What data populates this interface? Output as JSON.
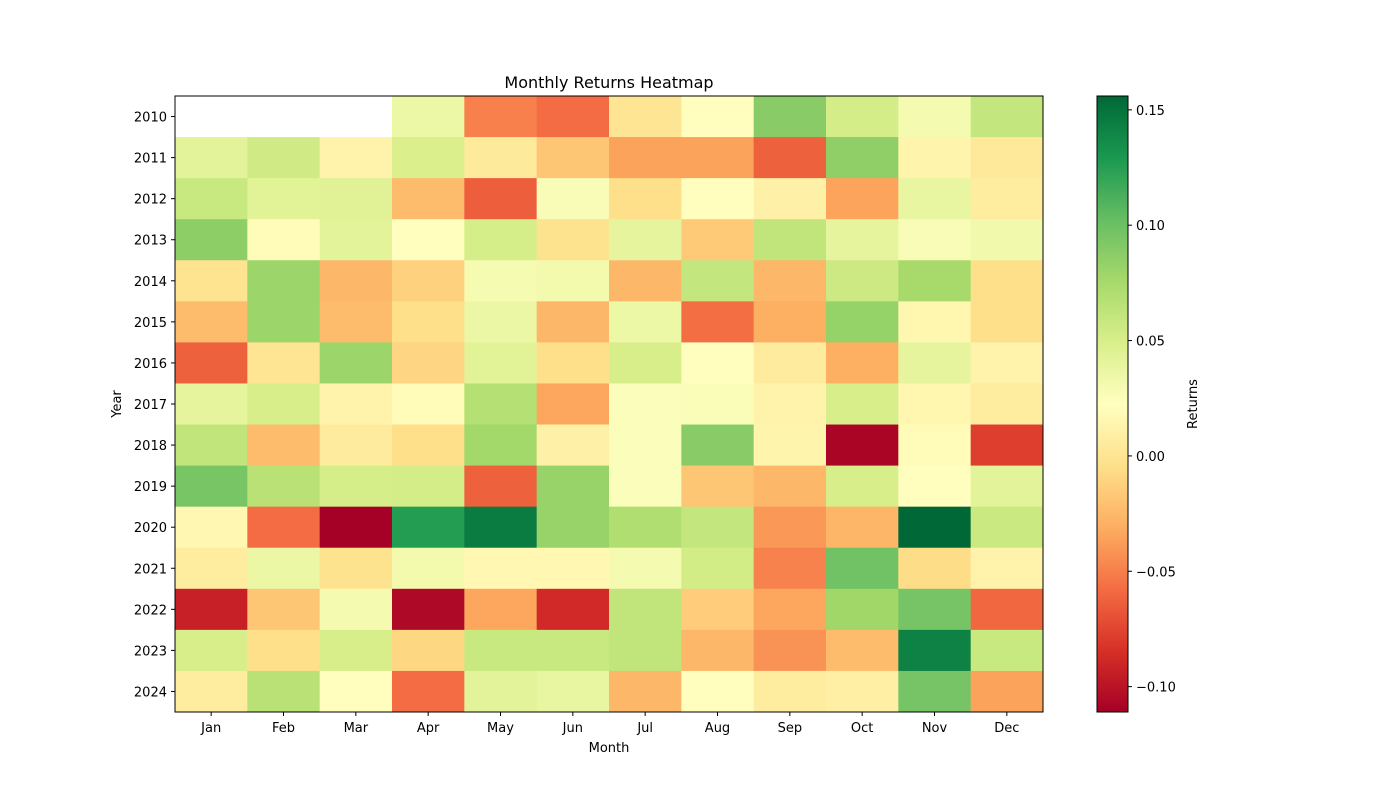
{
  "chart_data": {
    "type": "heatmap",
    "title": "Monthly Returns Heatmap",
    "xlabel": "Month",
    "ylabel": "Year",
    "colorbar_label": "Returns",
    "colormap": "RdYlGn",
    "colormap_stops": [
      "#a50026",
      "#d73027",
      "#f46d43",
      "#fdae61",
      "#fee08b",
      "#ffffbf",
      "#d9ef8b",
      "#a6d96a",
      "#66bd63",
      "#1a9850",
      "#006837"
    ],
    "vmin": -0.111,
    "vmax": 0.156,
    "colorbar_ticks": [
      -0.1,
      -0.05,
      0.0,
      0.05,
      0.1,
      0.15
    ],
    "colorbar_tick_labels": [
      "−0.10",
      "−0.05",
      "0.00",
      "0.05",
      "0.10",
      "0.15"
    ],
    "x_categories": [
      "Jan",
      "Feb",
      "Mar",
      "Apr",
      "May",
      "Jun",
      "Jul",
      "Aug",
      "Sep",
      "Oct",
      "Nov",
      "Dec"
    ],
    "y_categories": [
      "2010",
      "2011",
      "2012",
      "2013",
      "2014",
      "2015",
      "2016",
      "2017",
      "2018",
      "2019",
      "2020",
      "2021",
      "2022",
      "2023",
      "2024"
    ],
    "values": [
      [
        null,
        null,
        null,
        0.035,
        -0.05,
        -0.058,
        0.0,
        0.022,
        0.088,
        0.052,
        0.03,
        0.06
      ],
      [
        0.042,
        0.054,
        0.012,
        0.048,
        0.004,
        -0.018,
        -0.036,
        -0.036,
        -0.063,
        0.085,
        0.013,
        0.003
      ],
      [
        0.058,
        0.043,
        0.044,
        -0.024,
        -0.064,
        0.027,
        -0.005,
        0.022,
        0.01,
        -0.035,
        0.038,
        0.006
      ],
      [
        0.086,
        0.02,
        0.042,
        0.022,
        0.051,
        -0.002,
        0.04,
        -0.016,
        0.062,
        0.04,
        0.027,
        0.032
      ],
      [
        -0.001,
        0.08,
        -0.026,
        -0.012,
        0.029,
        0.031,
        -0.026,
        0.06,
        -0.026,
        0.056,
        0.075,
        -0.004
      ],
      [
        -0.024,
        0.08,
        -0.024,
        -0.005,
        0.036,
        -0.026,
        0.035,
        -0.057,
        -0.03,
        0.083,
        0.015,
        -0.004
      ],
      [
        -0.063,
        0.0,
        0.08,
        -0.01,
        0.043,
        -0.004,
        0.05,
        0.022,
        0.005,
        -0.03,
        0.04,
        0.012
      ],
      [
        0.04,
        0.05,
        0.012,
        0.019,
        0.068,
        -0.034,
        0.025,
        0.026,
        0.012,
        0.05,
        0.015,
        0.006
      ],
      [
        0.062,
        -0.024,
        0.005,
        -0.005,
        0.077,
        0.01,
        0.025,
        0.088,
        0.013,
        -0.108,
        0.02,
        -0.078
      ],
      [
        0.095,
        0.066,
        0.051,
        0.052,
        -0.063,
        0.082,
        0.025,
        -0.018,
        -0.026,
        0.05,
        0.022,
        0.042
      ],
      [
        0.016,
        -0.058,
        -0.111,
        0.126,
        0.145,
        0.082,
        0.07,
        0.06,
        -0.04,
        -0.027,
        0.156,
        0.057
      ],
      [
        0.006,
        0.036,
        -0.002,
        0.031,
        0.016,
        0.016,
        0.03,
        0.053,
        -0.049,
        0.098,
        -0.006,
        0.012
      ],
      [
        -0.093,
        -0.018,
        0.03,
        -0.106,
        -0.034,
        -0.088,
        0.062,
        -0.015,
        -0.034,
        0.078,
        0.096,
        -0.06
      ],
      [
        0.05,
        -0.004,
        0.05,
        -0.009,
        0.058,
        0.058,
        0.062,
        -0.026,
        -0.042,
        -0.024,
        0.142,
        0.058
      ],
      [
        0.006,
        0.066,
        0.022,
        -0.058,
        0.042,
        0.038,
        -0.026,
        0.022,
        0.006,
        0.009,
        0.096,
        -0.036
      ]
    ]
  }
}
